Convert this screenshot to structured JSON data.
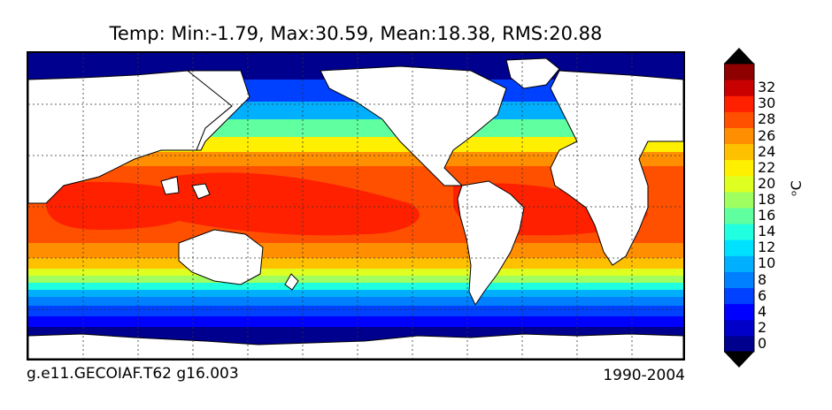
{
  "title": "Temp: Min:-1.79, Max:30.59, Mean:18.38, RMS:20.88",
  "footer": {
    "left": "g.e11.GECOIAF.T62 g16.003",
    "right": "1990-2004"
  },
  "colorbar": {
    "label": "ᵒC",
    "ticks": [
      "0",
      "2",
      "4",
      "6",
      "8",
      "10",
      "12",
      "14",
      "16",
      "18",
      "20",
      "22",
      "24",
      "26",
      "28",
      "30",
      "32"
    ],
    "under_color": "#000000",
    "over_color": "#000000",
    "colors": [
      "#00008f",
      "#0000c8",
      "#0000ff",
      "#0040ff",
      "#0080ff",
      "#00b0ff",
      "#00e0ff",
      "#20ffdf",
      "#60ff9f",
      "#a0ff60",
      "#dfff20",
      "#ffef00",
      "#ffc000",
      "#ff8f00",
      "#ff5000",
      "#ff2000",
      "#c80000",
      "#8f0000"
    ]
  },
  "map": {
    "projection": "global lat-lon",
    "grid": true,
    "land_color": "#ffffff",
    "coastline_color": "#000000"
  }
}
